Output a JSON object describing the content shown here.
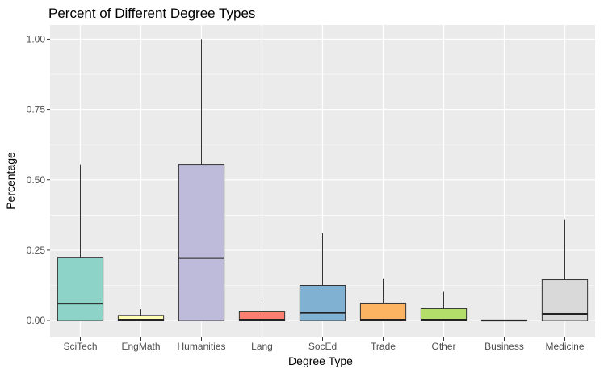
{
  "chart_data": {
    "type": "boxplot",
    "title": "Percent of Different Degree Types",
    "xlabel": "Degree Type",
    "ylabel": "Percentage",
    "ylim": [
      -0.06,
      1.05
    ],
    "yticks": [
      0,
      0.25,
      0.5,
      0.75,
      1
    ],
    "ytick_labels": [
      "0.00",
      "0.25",
      "0.50",
      "0.75",
      "1.00"
    ],
    "grid": true,
    "legend": "none",
    "background": "#ebebeb",
    "categories": [
      "SciTech",
      "EngMath",
      "Humanities",
      "Lang",
      "SocEd",
      "Trade",
      "Other",
      "Business",
      "Medicine"
    ],
    "boxes": [
      {
        "category": "SciTech",
        "min": 0,
        "q1": 0,
        "median": 0.06,
        "q3": 0.225,
        "max": 0.555,
        "color": "#8dd3c7"
      },
      {
        "category": "EngMath",
        "min": 0,
        "q1": 0,
        "median": 0.003,
        "q3": 0.018,
        "max": 0.04,
        "color": "#ffffb3"
      },
      {
        "category": "Humanities",
        "min": 0,
        "q1": 0,
        "median": 0.222,
        "q3": 0.555,
        "max": 1.0,
        "color": "#bebada"
      },
      {
        "category": "Lang",
        "min": 0,
        "q1": 0,
        "median": 0.003,
        "q3": 0.033,
        "max": 0.08,
        "color": "#fb8072"
      },
      {
        "category": "SocEd",
        "min": 0,
        "q1": 0,
        "median": 0.027,
        "q3": 0.125,
        "max": 0.31,
        "color": "#80b1d3"
      },
      {
        "category": "Trade",
        "min": 0,
        "q1": 0,
        "median": 0.003,
        "q3": 0.062,
        "max": 0.15,
        "color": "#fdb462"
      },
      {
        "category": "Other",
        "min": 0,
        "q1": 0,
        "median": 0.003,
        "q3": 0.042,
        "max": 0.102,
        "color": "#b3de69"
      },
      {
        "category": "Business",
        "min": 0,
        "q1": 0,
        "median": 0.0,
        "q3": 0.002,
        "max": 0.002,
        "color": "#fccde5"
      },
      {
        "category": "Medicine",
        "min": 0,
        "q1": 0,
        "median": 0.023,
        "q3": 0.145,
        "max": 0.36,
        "color": "#d9d9d9"
      }
    ]
  }
}
